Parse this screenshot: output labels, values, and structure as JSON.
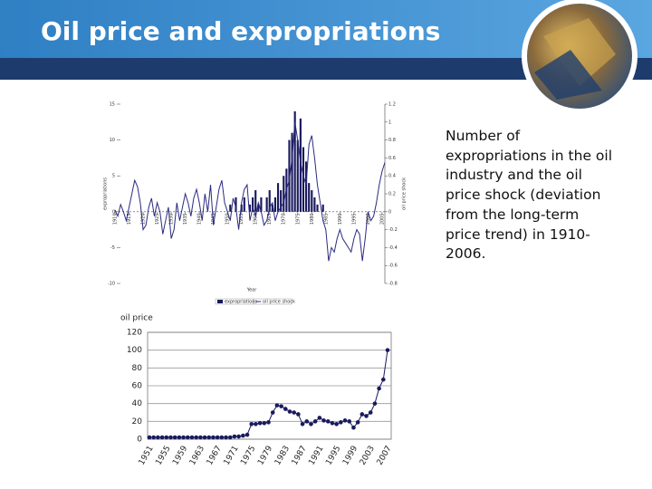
{
  "title": "Oil price and expropriations",
  "description": "Number of expropriations in the oil industry and the oil price shock (deviation from the long-term price trend) in 1910-2006.",
  "chart_data": [
    {
      "type": "bar-line",
      "x_label": "Year",
      "y_label": "expropriations",
      "y2_label": "oil price shock",
      "xlim": [
        1910,
        2006
      ],
      "ylim": [
        -10,
        15
      ],
      "y2lim": [
        -0.8,
        1.2
      ],
      "xticks": [
        1910,
        1915,
        1920,
        1925,
        1930,
        1935,
        1940,
        1945,
        1950,
        1955,
        1960,
        1965,
        1970,
        1975,
        1980,
        1985,
        1990,
        1995,
        2000,
        2005
      ],
      "yticks": [
        15,
        10,
        5,
        0,
        -5,
        -10
      ],
      "y2ticks": [
        1.2,
        1,
        0.8,
        0.6,
        0.4,
        0.2,
        0,
        -0.2,
        -0.4,
        -0.6,
        -0.8
      ],
      "legend": "bottom",
      "x": [
        1910,
        1911,
        1912,
        1913,
        1914,
        1915,
        1916,
        1917,
        1918,
        1919,
        1920,
        1921,
        1922,
        1923,
        1924,
        1925,
        1926,
        1927,
        1928,
        1929,
        1930,
        1931,
        1932,
        1933,
        1934,
        1935,
        1936,
        1937,
        1938,
        1939,
        1940,
        1941,
        1942,
        1943,
        1944,
        1945,
        1946,
        1947,
        1948,
        1949,
        1950,
        1951,
        1952,
        1953,
        1954,
        1955,
        1956,
        1957,
        1958,
        1959,
        1960,
        1961,
        1962,
        1963,
        1964,
        1965,
        1966,
        1967,
        1968,
        1969,
        1970,
        1971,
        1972,
        1973,
        1974,
        1975,
        1976,
        1977,
        1978,
        1979,
        1980,
        1981,
        1982,
        1983,
        1984,
        1985,
        1986,
        1987,
        1988,
        1989,
        1990,
        1991,
        1992,
        1993,
        1994,
        1995,
        1996,
        1997,
        1998,
        1999,
        2000,
        2001,
        2002,
        2003,
        2004,
        2005,
        2006
      ],
      "series": [
        {
          "name": "expropriations",
          "type": "bar",
          "color": "#1a1a5e",
          "values": [
            null,
            null,
            null,
            null,
            null,
            null,
            null,
            null,
            null,
            null,
            null,
            null,
            null,
            null,
            null,
            null,
            null,
            null,
            null,
            null,
            null,
            null,
            null,
            null,
            null,
            null,
            null,
            null,
            null,
            null,
            null,
            null,
            null,
            null,
            null,
            null,
            null,
            null,
            null,
            null,
            null,
            1,
            null,
            2,
            null,
            1,
            2,
            null,
            1,
            2,
            3,
            1,
            2,
            null,
            2,
            3,
            1,
            2,
            4,
            3,
            5,
            6,
            10,
            11,
            14,
            10,
            13,
            9,
            7,
            4,
            3,
            2,
            1,
            null,
            1,
            null,
            null,
            null,
            null,
            null,
            null,
            null,
            null,
            null,
            null,
            null,
            null,
            null,
            null,
            null,
            null,
            null,
            null,
            null,
            null,
            null,
            null
          ]
        },
        {
          "name": "oil price shock",
          "type": "line",
          "axis": "y2",
          "color": "#2a2a80",
          "values": [
            0.02,
            -0.05,
            0.08,
            0.0,
            -0.1,
            0.05,
            0.2,
            0.35,
            0.28,
            0.1,
            -0.2,
            -0.15,
            0.05,
            0.15,
            -0.05,
            0.1,
            0.0,
            -0.25,
            -0.1,
            0.05,
            -0.3,
            -0.2,
            0.1,
            -0.1,
            0.05,
            0.2,
            0.1,
            -0.05,
            0.15,
            0.25,
            0.1,
            -0.1,
            0.2,
            0.0,
            0.3,
            -0.15,
            0.05,
            0.25,
            0.35,
            0.1,
            0.0,
            -0.1,
            0.15,
            0.05,
            -0.2,
            0.1,
            0.25,
            0.3,
            -0.1,
            0.05,
            -0.05,
            0.1,
            0.0,
            -0.15,
            -0.1,
            0.05,
            0.1,
            -0.1,
            0.0,
            0.05,
            0.1,
            0.25,
            0.35,
            0.6,
            1.0,
            0.8,
            0.55,
            0.4,
            0.3,
            0.75,
            0.85,
            0.6,
            0.3,
            0.1,
            -0.1,
            -0.2,
            -0.55,
            -0.4,
            -0.45,
            -0.3,
            -0.2,
            -0.3,
            -0.35,
            -0.4,
            -0.45,
            -0.3,
            -0.2,
            -0.25,
            -0.55,
            -0.3,
            0.0,
            -0.1,
            -0.05,
            0.1,
            0.3,
            0.45,
            0.55
          ]
        }
      ]
    },
    {
      "type": "line",
      "title": "oil price",
      "color": "#1a1a5e",
      "grid": true,
      "ylim": [
        0,
        120
      ],
      "yticks": [
        0,
        20,
        40,
        60,
        80,
        100,
        120
      ],
      "categories": [
        "1951",
        null,
        null,
        null,
        "1955",
        null,
        null,
        null,
        "1959",
        null,
        null,
        null,
        "1963",
        null,
        null,
        null,
        "1967",
        null,
        null,
        null,
        "1971",
        null,
        null,
        null,
        "1975",
        null,
        null,
        null,
        "1979",
        null,
        null,
        null,
        "1983",
        null,
        null,
        null,
        "1987",
        null,
        null,
        null,
        "1991",
        null,
        null,
        null,
        "1995",
        null,
        null,
        null,
        "1999",
        null,
        null,
        null,
        "2003",
        null,
        null,
        null,
        "2007"
      ],
      "values": [
        2,
        2,
        2,
        2,
        2,
        2,
        2,
        2,
        2,
        2,
        2,
        2,
        2,
        2,
        2,
        2,
        2,
        2,
        2,
        2,
        3,
        3,
        4,
        5,
        17,
        17,
        18,
        18,
        19,
        30,
        38,
        37,
        34,
        31,
        30,
        28,
        17,
        20,
        17,
        20,
        24,
        21,
        20,
        18,
        17,
        19,
        21,
        20,
        13,
        19,
        28,
        26,
        30,
        40,
        57,
        67,
        100
      ]
    }
  ]
}
